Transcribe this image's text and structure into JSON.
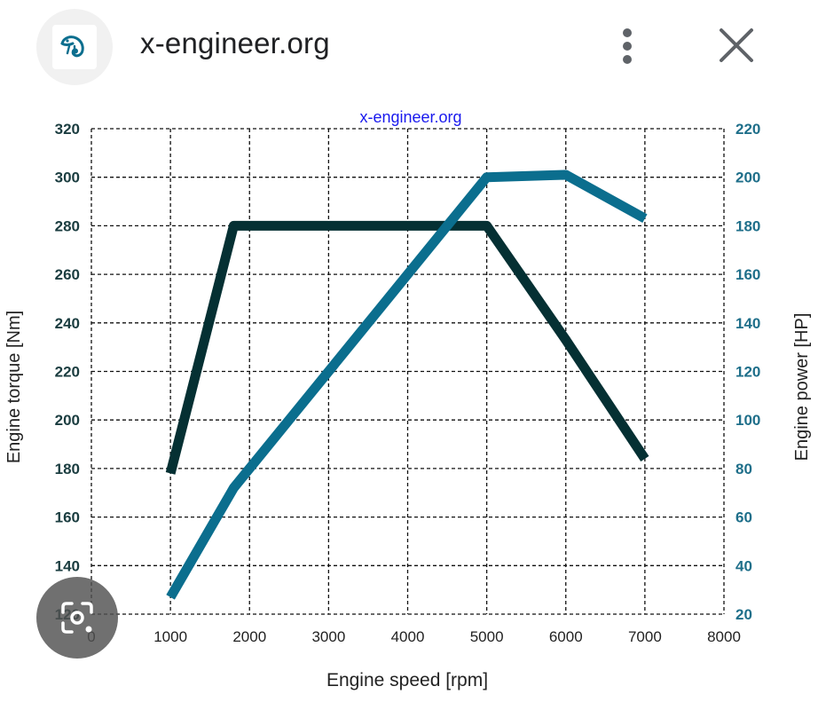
{
  "header": {
    "site_name": "x-engineer.org",
    "logo_icon": "chameleon-logo-icon",
    "menu_icon": "more-vertical-icon",
    "close_icon": "close-icon"
  },
  "overlay": {
    "lens_icon": "image-search-icon"
  },
  "chart_data": {
    "type": "line",
    "title": "x-engineer.org",
    "xlabel": "Engine speed [rpm]",
    "ylabel": "Engine torque [Nm]",
    "y2label": "Engine power [HP]",
    "xlim": [
      0,
      8000
    ],
    "ylim": [
      120,
      320
    ],
    "y2lim": [
      20,
      220
    ],
    "xticks": [
      "0",
      "1000",
      "2000",
      "3000",
      "4000",
      "5000",
      "6000",
      "7000",
      "8000"
    ],
    "yticks": [
      "120",
      "140",
      "160",
      "180",
      "200",
      "220",
      "240",
      "260",
      "280",
      "300",
      "320"
    ],
    "y2ticks": [
      "20",
      "40",
      "60",
      "80",
      "100",
      "120",
      "140",
      "160",
      "180",
      "200",
      "220"
    ],
    "grid": true,
    "series": [
      {
        "axis": "left",
        "color": "#053033",
        "x": [
          1000,
          1800,
          5000,
          6000,
          7000
        ],
        "y": [
          178,
          280,
          280,
          233,
          184
        ]
      },
      {
        "axis": "right",
        "color": "#0b6e8e",
        "x": [
          1000,
          1800,
          2500,
          3500,
          4500,
          5000,
          6000,
          7000
        ],
        "y": [
          27,
          72,
          100,
          140,
          180,
          200,
          201,
          183
        ]
      }
    ]
  }
}
